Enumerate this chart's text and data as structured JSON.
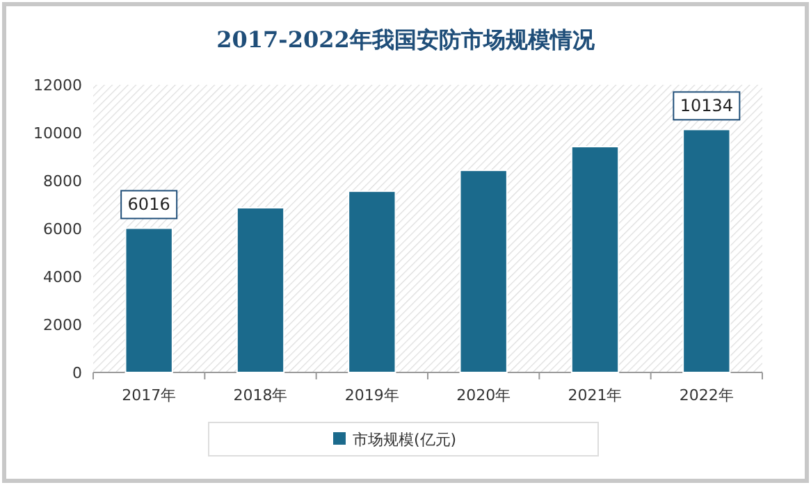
{
  "chart_data": {
    "type": "bar",
    "title": "2017-2022年我国安防市场规模情况",
    "categories": [
      "2017年",
      "2018年",
      "2019年",
      "2020年",
      "2021年",
      "2022年"
    ],
    "series": [
      {
        "name": "市场规模(亿元)",
        "color": "#1b6a8c",
        "values": [
          6016,
          6870,
          7560,
          8430,
          9420,
          10134
        ],
        "value_labels": [
          "6016",
          null,
          null,
          null,
          null,
          "10134"
        ]
      }
    ],
    "ylim": [
      0,
      12000
    ],
    "yticks": [
      0,
      2000,
      4000,
      6000,
      8000,
      10000,
      12000
    ],
    "legend": "bottom"
  }
}
